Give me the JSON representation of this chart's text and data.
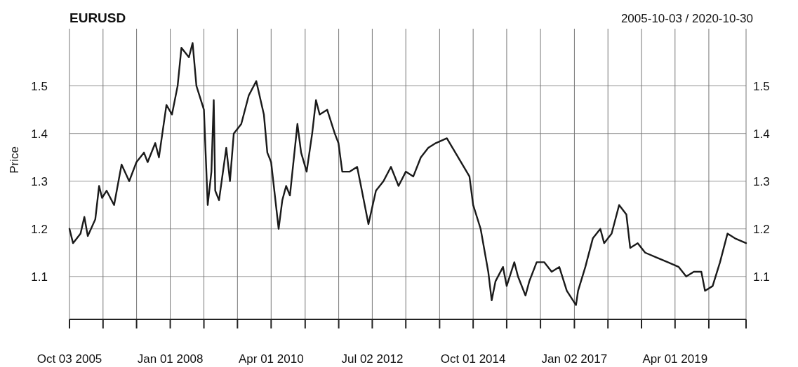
{
  "chart_data": {
    "type": "line",
    "title": "EURUSD",
    "subtitle": "2005-10-03 / 2020-10-30",
    "ylabel": "Price",
    "x": [
      "2005-10-03",
      "2005-11",
      "2006-01",
      "2006-02",
      "2006-03",
      "2006-05",
      "2006-06",
      "2006-06-25",
      "2006-08",
      "2006-10",
      "2006-12",
      "2007-02",
      "2007-04",
      "2007-06",
      "2007-07",
      "2007-09",
      "2007-10",
      "2007-12",
      "2008-01-15",
      "2008-03",
      "2008-04",
      "2008-06",
      "2008-07",
      "2008-08",
      "2008-10",
      "2008-11",
      "2008-12-01",
      "2008-12-20",
      "2009-01",
      "2009-02",
      "2009-04",
      "2009-05",
      "2009-06",
      "2009-08",
      "2009-10",
      "2009-12",
      "2010-02",
      "2010-03",
      "2010-04",
      "2010-06",
      "2010-07",
      "2010-08",
      "2010-09",
      "2010-11",
      "2010-12",
      "2011-01-15",
      "2011-03",
      "2011-04",
      "2011-05",
      "2011-07",
      "2011-09",
      "2011-10",
      "2011-11",
      "2012-01",
      "2012-03",
      "2012-04",
      "2012-06",
      "2012-08",
      "2012-10",
      "2012-12",
      "2013-02",
      "2013-04",
      "2013-06",
      "2013-08",
      "2013-10",
      "2013-12",
      "2014-03",
      "2014-06",
      "2014-09",
      "2014-10",
      "2014-12",
      "2015-02",
      "2015-03",
      "2015-04",
      "2015-06",
      "2015-07",
      "2015-09",
      "2015-10",
      "2015-12",
      "2016-01",
      "2016-03",
      "2016-05",
      "2016-07",
      "2016-09",
      "2016-11",
      "2017-01-15",
      "2017-02",
      "2017-04",
      "2017-06",
      "2017-08",
      "2017-09",
      "2017-11",
      "2018-01",
      "2018-03",
      "2018-04",
      "2018-06",
      "2018-08",
      "2018-11",
      "2019-02",
      "2019-05",
      "2019-07",
      "2019-09",
      "2019-11",
      "2019-12",
      "2020-02",
      "2020-04",
      "2020-06",
      "2020-08",
      "2020-10-30"
    ],
    "series": [
      {
        "color": "#1a1a1a",
        "values": [
          1.2,
          1.17,
          1.19,
          1.225,
          1.185,
          1.22,
          1.29,
          1.265,
          1.28,
          1.25,
          1.335,
          1.3,
          1.34,
          1.36,
          1.34,
          1.38,
          1.35,
          1.46,
          1.44,
          1.5,
          1.58,
          1.56,
          1.59,
          1.5,
          1.45,
          1.25,
          1.32,
          1.47,
          1.28,
          1.26,
          1.37,
          1.3,
          1.4,
          1.42,
          1.48,
          1.51,
          1.44,
          1.36,
          1.34,
          1.2,
          1.26,
          1.29,
          1.27,
          1.42,
          1.36,
          1.32,
          1.4,
          1.47,
          1.44,
          1.45,
          1.4,
          1.38,
          1.32,
          1.32,
          1.33,
          1.29,
          1.21,
          1.28,
          1.3,
          1.33,
          1.29,
          1.32,
          1.31,
          1.35,
          1.37,
          1.38,
          1.39,
          1.35,
          1.31,
          1.25,
          1.2,
          1.11,
          1.05,
          1.09,
          1.12,
          1.08,
          1.13,
          1.1,
          1.06,
          1.09,
          1.13,
          1.13,
          1.11,
          1.12,
          1.07,
          1.04,
          1.07,
          1.12,
          1.18,
          1.2,
          1.17,
          1.19,
          1.25,
          1.23,
          1.16,
          1.17,
          1.15,
          1.14,
          1.13,
          1.12,
          1.1,
          1.11,
          1.11,
          1.07,
          1.08,
          1.13,
          1.19,
          1.18,
          1.17
        ]
      }
    ],
    "xlim": [
      "2005-10-03",
      "2020-10-30"
    ],
    "xticks": [
      {
        "value": "2005-10-03",
        "label": "Oct 03 2005"
      },
      {
        "value": "2006-07-03",
        "label": null
      },
      {
        "value": "2007-04-02",
        "label": null
      },
      {
        "value": "2008-01-01",
        "label": "Jan 01 2008"
      },
      {
        "value": "2008-10-01",
        "label": null
      },
      {
        "value": "2009-07-01",
        "label": null
      },
      {
        "value": "2010-04-01",
        "label": "Apr 01 2010"
      },
      {
        "value": "2011-01-03",
        "label": null
      },
      {
        "value": "2011-10-03",
        "label": null
      },
      {
        "value": "2012-07-02",
        "label": "Jul 02 2012"
      },
      {
        "value": "2013-04-01",
        "label": null
      },
      {
        "value": "2014-01-01",
        "label": null
      },
      {
        "value": "2014-10-01",
        "label": "Oct 01 2014"
      },
      {
        "value": "2015-07-01",
        "label": null
      },
      {
        "value": "2016-04-01",
        "label": null
      },
      {
        "value": "2017-01-02",
        "label": "Jan 02 2017"
      },
      {
        "value": "2017-10-02",
        "label": null
      },
      {
        "value": "2018-07-02",
        "label": null
      },
      {
        "value": "2019-04-01",
        "label": "Apr 01 2019"
      },
      {
        "value": "2020-01-01",
        "label": null
      },
      {
        "value": "2020-10-30",
        "label": null
      }
    ],
    "ylim": [
      1.01,
      1.62
    ],
    "yticks": [
      1.1,
      1.2,
      1.3,
      1.4,
      1.5
    ],
    "y2lim": [
      1.01,
      1.62
    ],
    "y2ticks": [
      1.1,
      1.2,
      1.3,
      1.4,
      1.5
    ],
    "grid": true,
    "marker": "none",
    "line_style": "solid"
  }
}
